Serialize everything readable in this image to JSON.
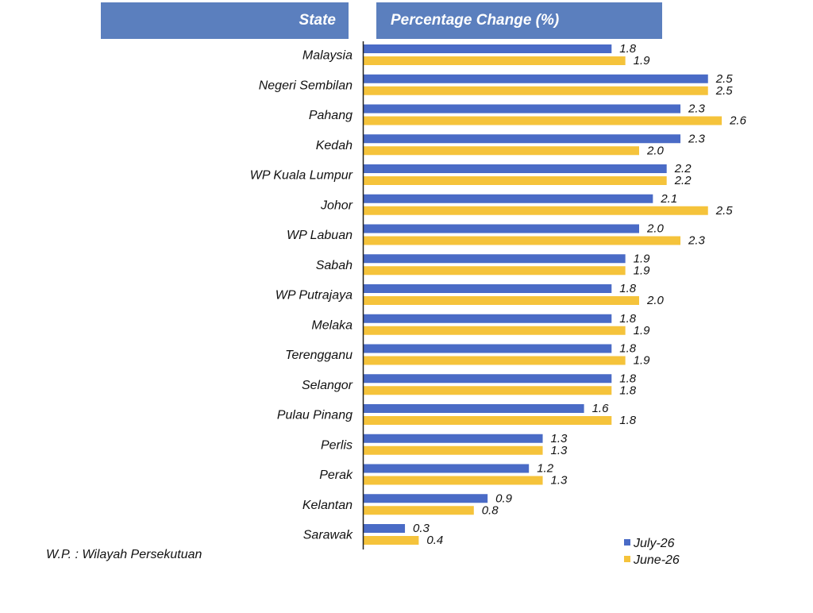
{
  "header": {
    "state_label": "State",
    "change_label": "Percentage Change (%)"
  },
  "footnote": "W.P. : Wilayah Persekutuan",
  "colors": {
    "header_bg": "#5b7fbe",
    "july": "#4a6bc6",
    "june": "#f5c33b"
  },
  "chart_data": {
    "type": "bar",
    "orientation": "horizontal",
    "categories": [
      "Malaysia",
      "Negeri Sembilan",
      "Pahang",
      "Kedah",
      "WP Kuala Lumpur",
      "Johor",
      "WP Labuan",
      "Sabah",
      "WP Putrajaya",
      "Melaka",
      "Terengganu",
      "Selangor",
      "Pulau Pinang",
      "Perlis",
      "Perak",
      "Kelantan",
      "Sarawak"
    ],
    "series": [
      {
        "name": "July-26",
        "values": [
          1.8,
          2.5,
          2.3,
          2.3,
          2.2,
          2.1,
          2.0,
          1.9,
          1.8,
          1.8,
          1.8,
          1.8,
          1.6,
          1.3,
          1.2,
          0.9,
          0.3
        ]
      },
      {
        "name": "June-26",
        "values": [
          1.9,
          2.5,
          2.6,
          2.0,
          2.2,
          2.5,
          2.3,
          1.9,
          2.0,
          1.9,
          1.9,
          1.8,
          1.8,
          1.3,
          1.3,
          0.8,
          0.4
        ]
      }
    ],
    "value_format": "one-decimal",
    "legend_position": "bottom-right",
    "grid": false
  }
}
